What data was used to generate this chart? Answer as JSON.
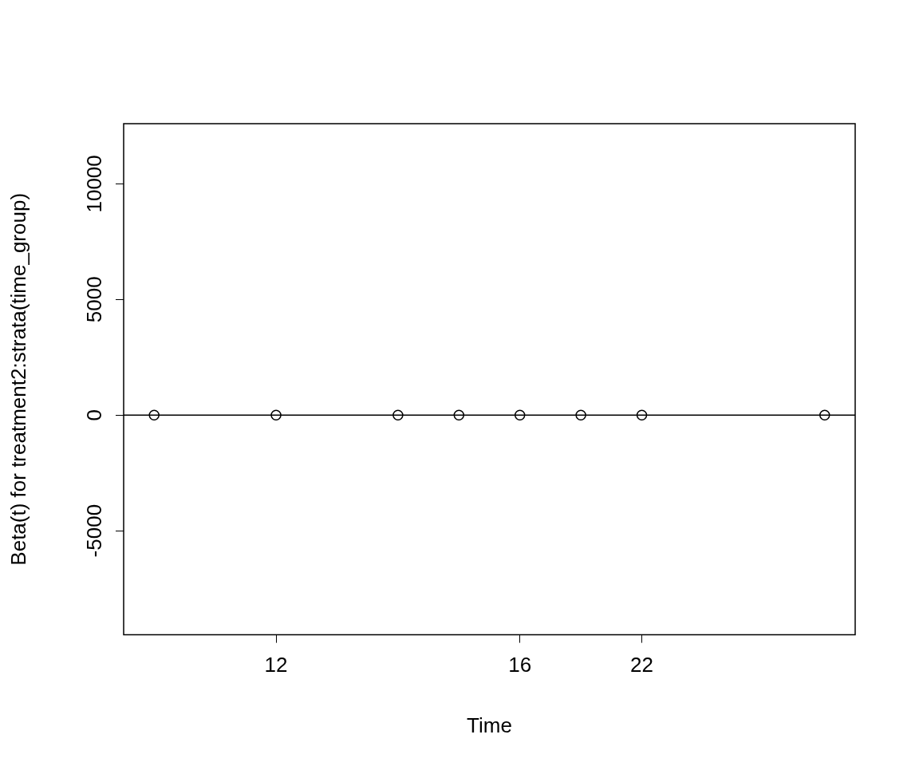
{
  "chart_data": {
    "type": "scatter",
    "xlabel": "Time",
    "ylabel": "Beta(t) for treatment2:strata(time_group)",
    "categories": [
      null,
      null,
      "12",
      null,
      null,
      null,
      "16",
      null,
      "22",
      null,
      null,
      null
    ],
    "ylim": [
      -9500,
      12600
    ],
    "yticks": [
      -5000,
      0,
      5000,
      10000
    ],
    "grid": false,
    "legend": false,
    "marker": "circle",
    "ref_lines": [
      {
        "axis": "y",
        "value": 0,
        "color": "#000000",
        "line_style": "solid"
      }
    ],
    "series": [
      {
        "color": "#000000",
        "values": [
          0,
          null,
          0,
          null,
          0,
          0,
          0,
          0,
          0,
          null,
          null,
          0
        ]
      }
    ]
  }
}
